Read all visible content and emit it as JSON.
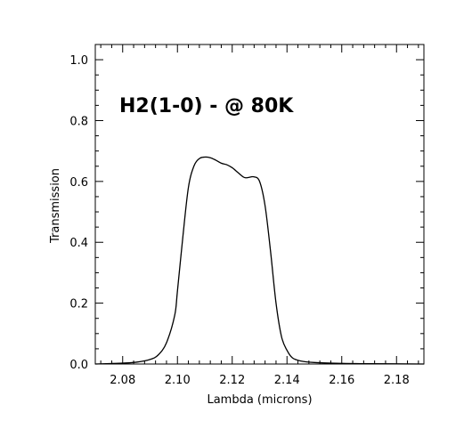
{
  "chart_data": {
    "type": "line",
    "title": "",
    "annotation": "H2(1-0) - @ 80K",
    "xlabel": "Lambda (microns)",
    "ylabel": "Transmission",
    "xlim": [
      2.07,
      2.19
    ],
    "ylim": [
      0.0,
      1.05
    ],
    "x_ticks": [
      2.08,
      2.1,
      2.12,
      2.14,
      2.16,
      2.18
    ],
    "x_tick_labels": [
      "2.08",
      "2.10",
      "2.12",
      "2.14",
      "2.16",
      "2.18"
    ],
    "y_ticks": [
      0.0,
      0.2,
      0.4,
      0.6,
      0.8,
      1.0
    ],
    "y_tick_labels": [
      "0.0",
      "0.2",
      "0.4",
      "0.6",
      "0.8",
      "1.0"
    ],
    "grid": false,
    "series": [
      {
        "x": [
          2.07,
          2.08,
          2.085,
          2.09,
          2.093,
          2.096,
          2.099,
          2.1,
          2.102,
          2.104,
          2.106,
          2.108,
          2.11,
          2.112,
          2.114,
          2.116,
          2.118,
          2.12,
          2.122,
          2.124,
          2.125,
          2.126,
          2.128,
          2.13,
          2.132,
          2.134,
          2.136,
          2.138,
          2.14,
          2.142,
          2.145,
          2.15,
          2.16,
          2.17,
          2.19
        ],
        "y": [
          0.0,
          0.003,
          0.006,
          0.015,
          0.03,
          0.07,
          0.16,
          0.24,
          0.42,
          0.58,
          0.65,
          0.675,
          0.68,
          0.678,
          0.67,
          0.66,
          0.655,
          0.645,
          0.63,
          0.615,
          0.612,
          0.613,
          0.615,
          0.6,
          0.52,
          0.37,
          0.2,
          0.09,
          0.045,
          0.02,
          0.01,
          0.005,
          0.002,
          0.001,
          0.0
        ]
      }
    ]
  }
}
